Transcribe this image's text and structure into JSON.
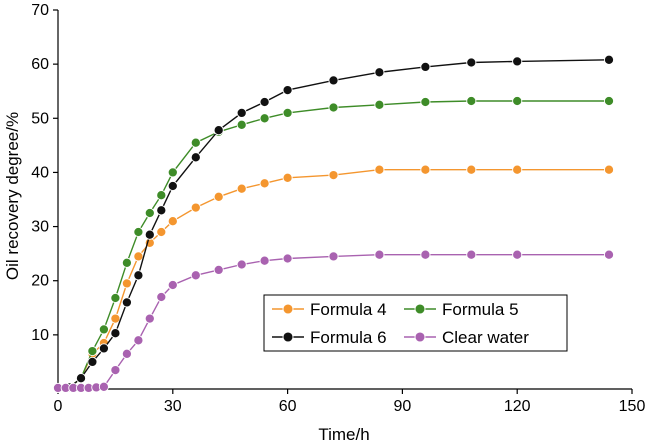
{
  "chart_data": {
    "type": "line",
    "title": "",
    "xlabel": "Time/h",
    "ylabel": "Oil recovery degree/%",
    "xlim": [
      0,
      150
    ],
    "ylim": [
      0,
      70
    ],
    "xticks": [
      0,
      30,
      60,
      90,
      120,
      150
    ],
    "yticks": [
      10,
      20,
      30,
      40,
      50,
      60,
      70
    ],
    "x_tick_labels": [
      "0",
      "30",
      "60",
      "90",
      "120",
      "150"
    ],
    "y_tick_labels": [
      "10",
      "20",
      "30",
      "40",
      "50",
      "60",
      "70"
    ],
    "grid": false,
    "legend_position": "lower-right",
    "series": [
      {
        "name": "Formula 4",
        "color": "#F4962F",
        "x": [
          3,
          6,
          9,
          12,
          15,
          18,
          21,
          24,
          27,
          30,
          36,
          42,
          48,
          54,
          60,
          72,
          84,
          96,
          108,
          120,
          144
        ],
        "y": [
          0.3,
          2.0,
          6.5,
          8.5,
          13.0,
          19.5,
          24.5,
          27.0,
          29.0,
          31.0,
          33.5,
          35.5,
          37.0,
          38.0,
          39.0,
          39.5,
          40.5,
          40.5,
          40.5,
          40.5,
          40.5
        ]
      },
      {
        "name": "Formula 5",
        "color": "#3E8C28",
        "x": [
          3,
          6,
          9,
          12,
          15,
          18,
          21,
          24,
          27,
          30,
          36,
          42,
          48,
          54,
          60,
          72,
          84,
          96,
          108,
          120,
          144
        ],
        "y": [
          0.3,
          2.0,
          7.0,
          11.0,
          16.8,
          23.3,
          29.0,
          32.5,
          35.8,
          40.0,
          45.5,
          47.5,
          48.8,
          50.0,
          51.0,
          52.0,
          52.5,
          53.0,
          53.2,
          53.2,
          53.2
        ]
      },
      {
        "name": "Formula 6",
        "color": "#111111",
        "x": [
          3,
          6,
          9,
          12,
          15,
          18,
          21,
          24,
          27,
          30,
          36,
          42,
          48,
          54,
          60,
          72,
          84,
          96,
          108,
          120,
          144
        ],
        "y": [
          0.3,
          2.0,
          5.0,
          7.5,
          10.3,
          16.0,
          21.0,
          28.5,
          33.0,
          37.5,
          42.8,
          47.8,
          51.0,
          53.0,
          55.2,
          57.0,
          58.5,
          59.5,
          60.3,
          60.5,
          60.8
        ]
      },
      {
        "name": "Clear water",
        "color": "#A962B0",
        "x": [
          0,
          2,
          4,
          6,
          8,
          10,
          12,
          15,
          18,
          21,
          24,
          27,
          30,
          36,
          42,
          48,
          54,
          60,
          72,
          84,
          96,
          108,
          120,
          144
        ],
        "y": [
          0.2,
          0.2,
          0.2,
          0.2,
          0.2,
          0.3,
          0.4,
          3.5,
          6.5,
          9.0,
          13.0,
          17.0,
          19.2,
          21.0,
          22.0,
          23.0,
          23.7,
          24.1,
          24.5,
          24.8,
          24.8,
          24.8,
          24.8,
          24.8
        ]
      }
    ]
  }
}
